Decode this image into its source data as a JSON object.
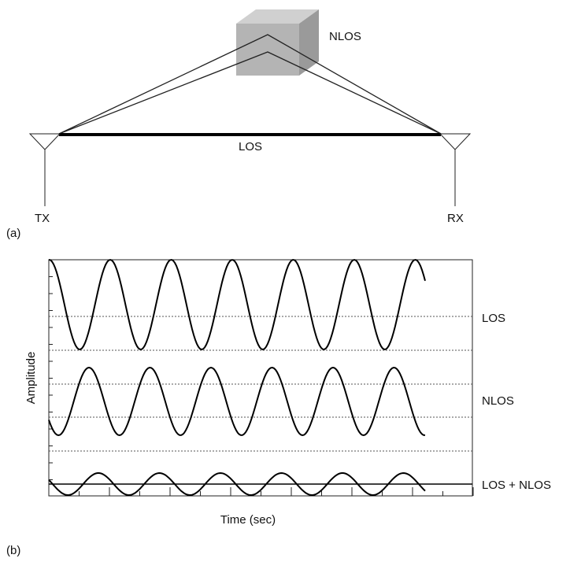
{
  "diagram": {
    "nlos_label": "NLOS",
    "los_label": "LOS",
    "tx_label": "TX",
    "rx_label": "RX",
    "panel_a": "(a)"
  },
  "plot": {
    "y_label": "Amplitude",
    "x_label": "Time (sec)",
    "panel_b": "(b)",
    "traces": [
      "LOS",
      "NLOS",
      "LOS + NLOS"
    ]
  }
}
